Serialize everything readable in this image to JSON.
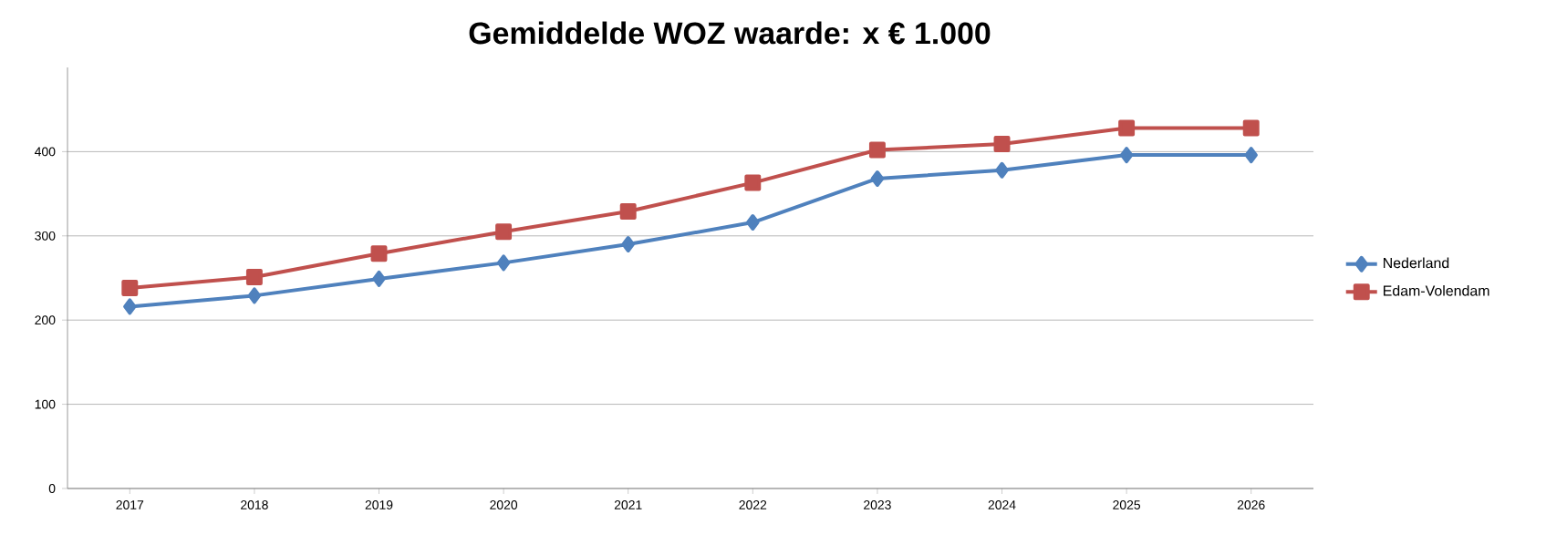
{
  "chart_data": {
    "type": "line",
    "title": "Gemiddelde WOZ waarde: x € 1.000",
    "categories": [
      "2017",
      "2018",
      "2019",
      "2020",
      "2021",
      "2022",
      "2023",
      "2024",
      "2025",
      "2026"
    ],
    "series": [
      {
        "name": "Nederland",
        "color": "#4f81bd",
        "marker": "diamond",
        "values": [
          216,
          229,
          249,
          268,
          290,
          316,
          368,
          378,
          396,
          396
        ]
      },
      {
        "name": "Edam-Volendam",
        "color": "#c0504d",
        "marker": "square",
        "values": [
          238,
          251,
          279,
          305,
          329,
          363,
          402,
          409,
          428,
          428
        ]
      }
    ],
    "ylim": [
      0,
      500
    ],
    "yticks": [
      0,
      100,
      200,
      300,
      400
    ],
    "grid": "y",
    "legend": "right",
    "line_style": "solid"
  }
}
